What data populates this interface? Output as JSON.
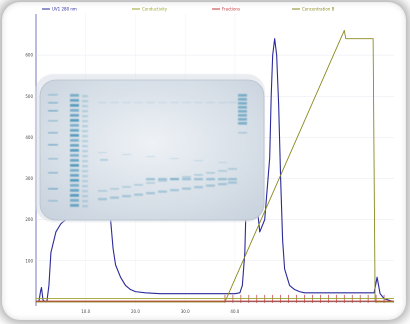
{
  "chart_data": {
    "type": "line",
    "title": "",
    "xlabel": "",
    "ylabel": "",
    "xlim": [
      0,
      72
    ],
    "ylim": [
      -10,
      700
    ],
    "x_ticks": [
      {
        "value": 10,
        "label": "10.0"
      },
      {
        "value": 20,
        "label": "20.0"
      },
      {
        "value": 30,
        "label": "30.0"
      },
      {
        "value": 40,
        "label": "40.0"
      }
    ],
    "y_ticks": [
      {
        "value": 100,
        "label": "100"
      },
      {
        "value": 200,
        "label": "200"
      },
      {
        "value": 300,
        "label": "300"
      },
      {
        "value": 400,
        "label": "400"
      },
      {
        "value": 500,
        "label": "500"
      },
      {
        "value": 600,
        "label": "600"
      }
    ],
    "grid": true,
    "legend_position": "top",
    "legend": [
      {
        "label": "UV1 280 nm",
        "color": "#2a2a9a"
      },
      {
        "label": "Conductivity",
        "color": "#9aa52a"
      },
      {
        "label": "Fractions",
        "color": "#c23a3a"
      },
      {
        "label": "Concentration B",
        "color": "#8a8a20"
      }
    ],
    "series": [
      {
        "color": "#2a2a9a",
        "x": [
          0,
          0.6,
          0.9,
          1.1,
          1.4,
          1.8,
          2.2,
          2.6,
          3,
          4,
          5,
          6,
          8,
          10,
          12,
          13,
          13.6,
          14.2,
          14.6,
          15,
          15.5,
          16,
          17,
          18,
          19,
          20,
          22,
          25,
          28,
          30,
          32,
          34,
          36,
          38,
          39,
          40,
          41,
          41.5,
          42,
          42.5,
          43,
          43.5,
          44,
          44.5,
          45,
          46,
          47,
          47.3,
          47.6,
          48,
          48.4,
          48.8,
          49.2,
          49.6,
          50,
          51,
          52,
          53,
          54,
          56,
          58,
          60,
          62,
          64,
          66,
          68,
          68.6,
          69.2,
          70,
          72
        ],
        "y": [
          0,
          2,
          25,
          35,
          5,
          0,
          2,
          40,
          120,
          170,
          190,
          200,
          210,
          215,
          222,
          230,
          250,
          280,
          250,
          200,
          130,
          90,
          60,
          40,
          30,
          25,
          22,
          20,
          20,
          20,
          20,
          20,
          20,
          20,
          20,
          20,
          22,
          40,
          120,
          350,
          520,
          480,
          380,
          230,
          170,
          200,
          350,
          500,
          600,
          640,
          600,
          480,
          300,
          150,
          80,
          40,
          30,
          25,
          22,
          22,
          22,
          22,
          22,
          22,
          22,
          22,
          60,
          20,
          8,
          0
        ]
      },
      {
        "color": "#8a8a20",
        "x": [
          0,
          38,
          62,
          62.3,
          67.8,
          68.2,
          72
        ],
        "y": [
          0,
          0,
          660,
          640,
          640,
          0,
          0
        ]
      },
      {
        "color": "#9aa52a",
        "x": [
          0,
          72
        ],
        "y": [
          8,
          8
        ]
      },
      {
        "color": "#c23a3a",
        "x": [
          0,
          72
        ],
        "y": [
          2,
          2
        ]
      }
    ],
    "fraction_marks": [
      38,
      39.6,
      41.2,
      42.8,
      44.4,
      46,
      47.6,
      49.2,
      50.8,
      52.4,
      54,
      55.6,
      57.2,
      58.8,
      60.4,
      62,
      63.6,
      65.2,
      66.8,
      68.4,
      70
    ]
  },
  "gel_image": {
    "description_hidden": ""
  }
}
